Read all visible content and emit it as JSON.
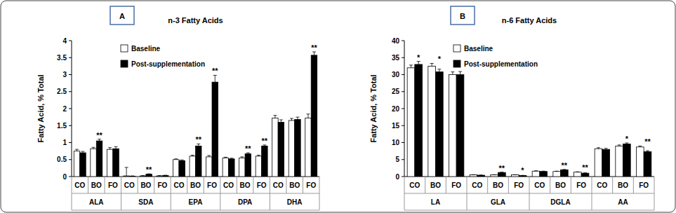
{
  "chart_data": [
    {
      "type": "bar",
      "label": "A",
      "title": "n-3 Fatty Acids",
      "y_label": "Fatty Acid, % Total",
      "categories": [
        "CO",
        "BO",
        "FO",
        "CO",
        "BO",
        "FO",
        "CO",
        "BO",
        "FO",
        "CO",
        "BO",
        "FO",
        "CO",
        "BO",
        "FO"
      ],
      "groups": [
        "ALA",
        "SDA",
        "EPA",
        "DPA",
        "DHA"
      ],
      "series": [
        {
          "name": "Baseline",
          "color": "#ffffff",
          "values": [
            0.75,
            0.82,
            0.8,
            0.02,
            0.02,
            0.02,
            0.5,
            0.6,
            0.58,
            0.55,
            0.55,
            0.6,
            1.72,
            1.65,
            1.72
          ],
          "errors": [
            0.05,
            0.04,
            0.05,
            0.25,
            0.01,
            0.01,
            0.02,
            0.03,
            0.04,
            0.02,
            0.03,
            0.03,
            0.08,
            0.06,
            0.12
          ]
        },
        {
          "name": "Post-supplementation",
          "color": "#000000",
          "values": [
            0.7,
            1.05,
            0.82,
            0.01,
            0.07,
            0.03,
            0.47,
            0.9,
            2.78,
            0.52,
            0.67,
            0.9,
            1.6,
            1.68,
            3.57
          ],
          "errors": [
            0.04,
            0.05,
            0.06,
            0.01,
            0.01,
            0.01,
            0.02,
            0.06,
            0.2,
            0.02,
            0.03,
            0.03,
            0.07,
            0.07,
            0.1
          ]
        }
      ],
      "significance": [
        null,
        "**",
        null,
        null,
        "**",
        null,
        null,
        "**",
        "**",
        null,
        "**",
        "**",
        null,
        null,
        "**"
      ],
      "ylim": [
        0,
        4
      ],
      "yticks": [
        0,
        0.5,
        1,
        1.5,
        2,
        2.5,
        3,
        3.5,
        4
      ],
      "grid": false,
      "legend": "upper left"
    },
    {
      "type": "bar",
      "label": "B",
      "title": "n-6 Fatty Acids",
      "y_label": "Fatty Acid, % Total",
      "categories": [
        "CO",
        "BO",
        "FO",
        "CO",
        "BO",
        "FO",
        "CO",
        "BO",
        "FO",
        "CO",
        "BO",
        "FO"
      ],
      "groups": [
        "LA",
        "GLA",
        "DGLA",
        "AA"
      ],
      "series": [
        {
          "name": "Baseline",
          "color": "#ffffff",
          "values": [
            32,
            32.5,
            30,
            0.5,
            0.5,
            0.5,
            1.6,
            1.5,
            1.3,
            8.2,
            9.0,
            8.7
          ],
          "errors": [
            0.8,
            0.8,
            0.8,
            0.05,
            0.05,
            0.05,
            0.1,
            0.1,
            0.1,
            0.3,
            0.3,
            0.3
          ]
        },
        {
          "name": "Post-supplementation",
          "color": "#000000",
          "values": [
            33,
            30.8,
            30,
            0.4,
            1.2,
            0.3,
            1.5,
            2.0,
            1.0,
            8.0,
            9.6,
            7.3
          ],
          "errors": [
            0.9,
            0.8,
            0.9,
            0.05,
            0.1,
            0.05,
            0.1,
            0.1,
            0.1,
            0.3,
            0.3,
            0.3
          ]
        }
      ],
      "significance": [
        "*",
        "*",
        null,
        null,
        "**",
        "*",
        null,
        "**",
        "**",
        null,
        "*",
        "**"
      ],
      "ylim": [
        0,
        40
      ],
      "yticks": [
        0,
        5,
        10,
        15,
        20,
        25,
        30,
        35,
        40
      ],
      "grid": false,
      "legend": "upper left"
    }
  ]
}
